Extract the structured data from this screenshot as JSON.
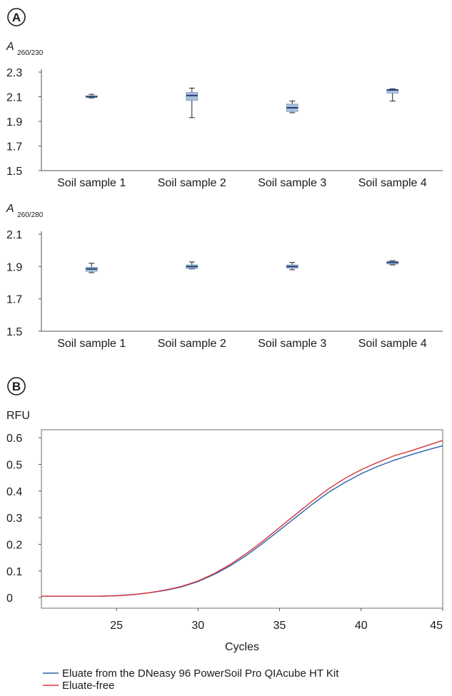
{
  "panels": {
    "a": {
      "letter": "A"
    },
    "b": {
      "letter": "B"
    }
  },
  "chart_data": [
    {
      "type": "box",
      "ylabel": "A",
      "ylabel_sub": "260/230",
      "ylim": [
        1.5,
        2.3
      ],
      "yticks": [
        "2.3",
        "2.1",
        "1.9",
        "1.7",
        "1.5"
      ],
      "categories": [
        "Soil sample 1",
        "Soil sample 2",
        "Soil sample 3",
        "Soil sample 4"
      ],
      "boxes": [
        {
          "min": 2.09,
          "q1": 2.095,
          "median": 2.1,
          "q3": 2.108,
          "max": 2.12
        },
        {
          "min": 1.93,
          "q1": 2.07,
          "median": 2.11,
          "q3": 2.135,
          "max": 2.17
        },
        {
          "min": 1.97,
          "q1": 1.98,
          "median": 2.01,
          "q3": 2.04,
          "max": 2.065
        },
        {
          "min": 2.065,
          "q1": 2.13,
          "median": 2.155,
          "q3": 2.16,
          "max": 2.165
        }
      ]
    },
    {
      "type": "box",
      "ylabel": "A",
      "ylabel_sub": "260/280",
      "ylim": [
        1.5,
        2.1
      ],
      "yticks": [
        "2.1",
        "1.9",
        "1.7",
        "1.5"
      ],
      "categories": [
        "Soil sample 1",
        "Soil sample 2",
        "Soil sample 3",
        "Soil sample 4"
      ],
      "boxes": [
        {
          "min": 1.862,
          "q1": 1.87,
          "median": 1.885,
          "q3": 1.895,
          "max": 1.92
        },
        {
          "min": 1.885,
          "q1": 1.888,
          "median": 1.9,
          "q3": 1.91,
          "max": 1.928
        },
        {
          "min": 1.88,
          "q1": 1.89,
          "median": 1.9,
          "q3": 1.91,
          "max": 1.925
        },
        {
          "min": 1.91,
          "q1": 1.915,
          "median": 1.925,
          "q3": 1.932,
          "max": 1.936
        }
      ]
    },
    {
      "type": "line",
      "ylabel": "RFU",
      "xlabel": "Cycles",
      "xlim": [
        20.4,
        45
      ],
      "ylim": [
        -0.04,
        0.63
      ],
      "xticks": [
        "25",
        "30",
        "35",
        "40",
        "45"
      ],
      "yticks": [
        "0.6",
        "0.5",
        "0.4",
        "0.3",
        "0.2",
        "0.1",
        "0"
      ],
      "x": [
        20.4,
        22,
        24,
        25,
        26,
        27,
        28,
        29,
        30,
        31,
        32,
        33,
        34,
        35,
        36,
        37,
        38,
        39,
        40,
        41,
        42,
        43,
        44,
        45
      ],
      "legend_position": "bottom-left",
      "series": [
        {
          "name": "Eluate from the DNeasy 96 PowerSoil Pro QIAcube HT Kit",
          "color": "#2b5fa8",
          "values": [
            0.005,
            0.005,
            0.005,
            0.007,
            0.011,
            0.018,
            0.027,
            0.04,
            0.06,
            0.087,
            0.12,
            0.16,
            0.205,
            0.253,
            0.302,
            0.35,
            0.395,
            0.432,
            0.465,
            0.492,
            0.515,
            0.535,
            0.553,
            0.57
          ]
        },
        {
          "name": "Eluate-free",
          "color": "#d6343c",
          "values": [
            0.005,
            0.005,
            0.005,
            0.007,
            0.011,
            0.018,
            0.028,
            0.042,
            0.062,
            0.09,
            0.125,
            0.167,
            0.213,
            0.263,
            0.313,
            0.362,
            0.408,
            0.447,
            0.48,
            0.507,
            0.532,
            0.55,
            0.57,
            0.59
          ]
        }
      ]
    }
  ]
}
